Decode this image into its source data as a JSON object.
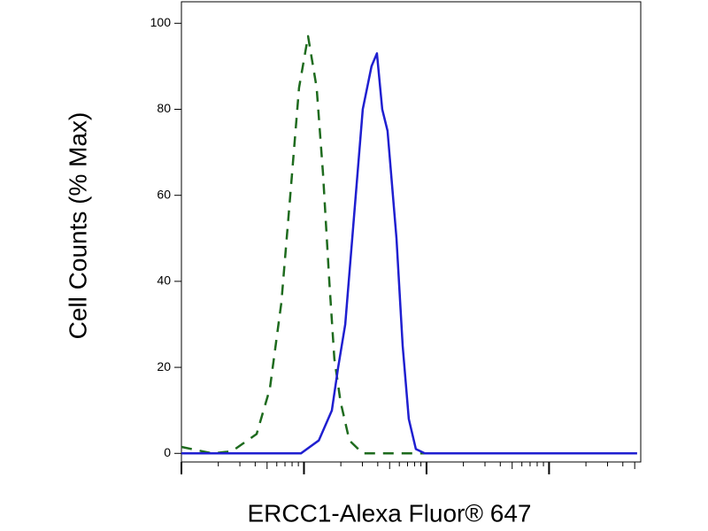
{
  "chart_data": {
    "type": "line",
    "x_label": "ERCC1-Alexa Fluor® 647",
    "y_label": "Cell Counts (% Max)",
    "xscale": "log",
    "xlim": [
      1,
      5600
    ],
    "xticks": [
      1,
      10,
      100,
      1000
    ],
    "ylim": [
      -2,
      105
    ],
    "yticks": [
      0,
      20,
      40,
      60,
      80,
      100
    ],
    "grid": false,
    "series": [
      {
        "color": "#1e6b1e",
        "line_style": "dashed",
        "x": [
          1,
          1.79,
          2.58,
          4.11,
          5.27,
          6.54,
          7.73,
          9.12,
          10.8,
          12.7,
          14.3,
          16.1,
          17.7,
          19.9,
          23.5,
          30.2,
          135,
          5230
        ],
        "values": [
          1.5,
          0,
          0.5,
          4.5,
          15,
          35,
          60,
          85,
          97,
          85,
          65,
          40,
          22,
          12,
          3,
          0,
          0,
          0
        ]
      },
      {
        "color": "#1f1fd0",
        "line_style": "solid",
        "x": [
          1,
          9.44,
          13.2,
          16.9,
          19.0,
          21.7,
          25.6,
          30.2,
          35.6,
          39.4,
          43.5,
          48.1,
          56.9,
          63.9,
          71.7,
          81.9,
          96.8,
          5230
        ],
        "values": [
          0,
          0,
          3,
          10,
          20,
          30,
          55,
          80,
          90,
          93,
          80,
          75,
          50,
          25,
          8,
          1,
          0,
          0
        ]
      }
    ]
  }
}
